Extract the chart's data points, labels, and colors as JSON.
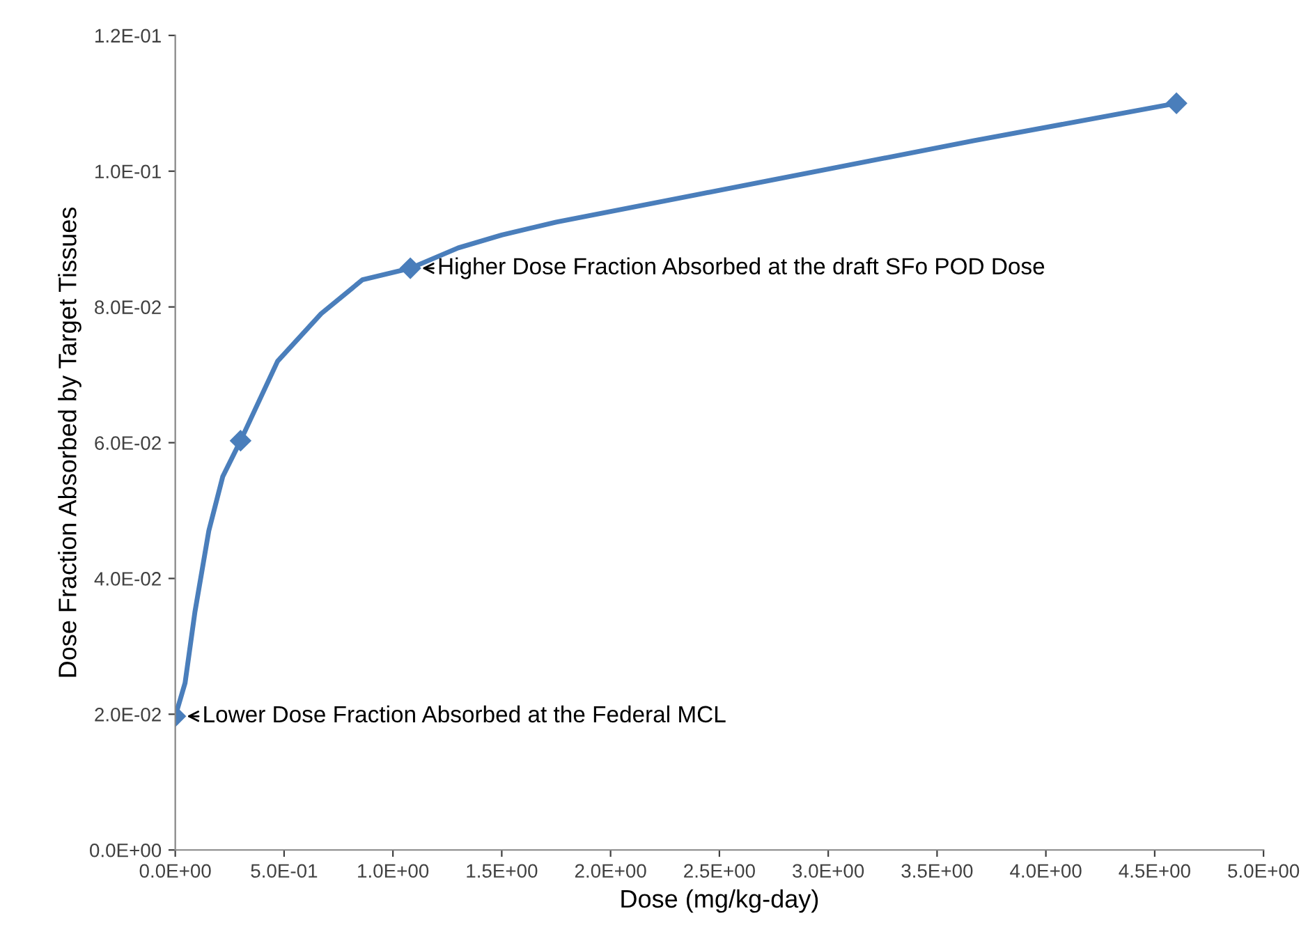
{
  "chart_data": {
    "type": "line",
    "xlabel": "Dose (mg/kg-day)",
    "ylabel": "Dose Fraction Absorbed by Target Tissues",
    "x": [
      0.0,
      0.045,
      0.09,
      0.154,
      0.218,
      0.3,
      0.47,
      0.67,
      0.86,
      1.08,
      1.3,
      1.5,
      1.75,
      2.39,
      3.03,
      3.67,
      4.6
    ],
    "series": [
      {
        "color": "#4a7ebb",
        "marker": "none",
        "values": [
          0.0197,
          0.0246,
          0.035,
          0.047,
          0.055,
          0.0603,
          0.072,
          0.079,
          0.084,
          0.0857,
          0.0887,
          0.0906,
          0.0925,
          0.0965,
          0.1005,
          0.1045,
          0.11
        ]
      },
      {
        "type": "scatter",
        "marker": "diamond",
        "color": "#4a7ebb",
        "x": [
          0.0,
          0.3,
          1.08,
          4.6
        ],
        "values": [
          0.0197,
          0.0603,
          0.0857,
          0.11
        ]
      }
    ],
    "line_style": "solid",
    "grid": false,
    "legend": false,
    "xlim": [
      0,
      5
    ],
    "ylim": [
      0,
      0.12
    ],
    "xticks": [
      {
        "value": 0,
        "label": "0.0E+00"
      },
      {
        "value": 0.5,
        "label": "5.0E-01"
      },
      {
        "value": 1.0,
        "label": "1.0E+00"
      },
      {
        "value": 1.5,
        "label": "1.5E+00"
      },
      {
        "value": 2.0,
        "label": "2.0E+00"
      },
      {
        "value": 2.5,
        "label": "2.5E+00"
      },
      {
        "value": 3.0,
        "label": "3.0E+00"
      },
      {
        "value": 3.5,
        "label": "3.5E+00"
      },
      {
        "value": 4.0,
        "label": "4.0E+00"
      },
      {
        "value": 4.5,
        "label": "4.5E+00"
      },
      {
        "value": 5.0,
        "label": "5.0E+00"
      }
    ],
    "yticks": [
      {
        "value": 0,
        "label": "0.0E+00"
      },
      {
        "value": 0.02,
        "label": "2.0E-02"
      },
      {
        "value": 0.04,
        "label": "4.0E-02"
      },
      {
        "value": 0.06,
        "label": "6.0E-02"
      },
      {
        "value": 0.08,
        "label": "8.0E-02"
      },
      {
        "value": 0.1,
        "label": "1.0E-01"
      },
      {
        "value": 0.12,
        "label": "1.2E-01"
      }
    ],
    "annotations": [
      {
        "text": "Lower Dose Fraction Absorbed at the Federal MCL",
        "x": 0.0,
        "y": 0.0197
      },
      {
        "text": "Higher Dose Fraction Absorbed at the draft SFo POD Dose",
        "x": 1.08,
        "y": 0.0857
      }
    ]
  }
}
